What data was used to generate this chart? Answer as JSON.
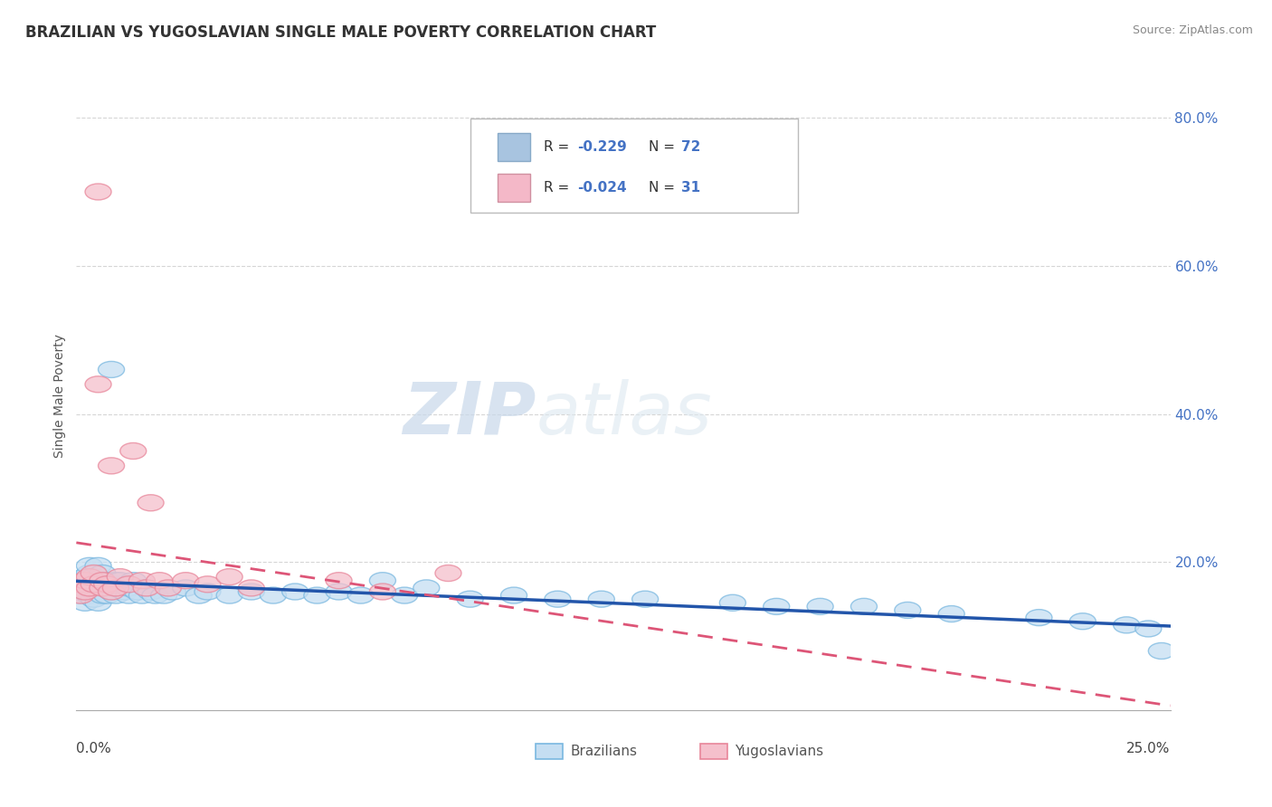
{
  "title": "BRAZILIAN VS YUGOSLAVIAN SINGLE MALE POVERTY CORRELATION CHART",
  "source": "Source: ZipAtlas.com",
  "ylabel": "Single Male Poverty",
  "xlim": [
    0.0,
    0.25
  ],
  "ylim": [
    0.0,
    0.85
  ],
  "watermark_zip": "ZIP",
  "watermark_atlas": "atlas",
  "brazilians_color": "#7ab8e0",
  "brazilians_face": "#c5def2",
  "yugoslavians_color": "#e8869a",
  "yugoslavians_face": "#f5c0cc",
  "trend_blue_color": "#2255aa",
  "trend_pink_color": "#dd5577",
  "background_color": "#ffffff",
  "grid_color": "#cccccc",
  "title_color": "#333333",
  "legend_box_color": "#a8c4e0",
  "legend_pink_color": "#f4b8c8",
  "r_value_color": "#4472c4",
  "brazil_x": [
    0.001,
    0.001,
    0.002,
    0.002,
    0.002,
    0.002,
    0.003,
    0.003,
    0.003,
    0.003,
    0.003,
    0.004,
    0.004,
    0.004,
    0.004,
    0.005,
    0.005,
    0.005,
    0.005,
    0.006,
    0.006,
    0.006,
    0.007,
    0.007,
    0.007,
    0.008,
    0.008,
    0.008,
    0.009,
    0.009,
    0.01,
    0.01,
    0.011,
    0.012,
    0.012,
    0.013,
    0.014,
    0.015,
    0.016,
    0.017,
    0.018,
    0.02,
    0.022,
    0.025,
    0.028,
    0.03,
    0.035,
    0.04,
    0.045,
    0.05,
    0.055,
    0.06,
    0.065,
    0.07,
    0.075,
    0.08,
    0.09,
    0.1,
    0.11,
    0.12,
    0.13,
    0.15,
    0.16,
    0.17,
    0.18,
    0.19,
    0.2,
    0.22,
    0.23,
    0.24,
    0.245,
    0.248
  ],
  "brazil_y": [
    0.155,
    0.165,
    0.145,
    0.16,
    0.17,
    0.18,
    0.155,
    0.165,
    0.175,
    0.185,
    0.195,
    0.15,
    0.16,
    0.17,
    0.18,
    0.145,
    0.165,
    0.175,
    0.195,
    0.155,
    0.17,
    0.185,
    0.155,
    0.165,
    0.175,
    0.16,
    0.17,
    0.46,
    0.155,
    0.175,
    0.165,
    0.175,
    0.16,
    0.155,
    0.165,
    0.175,
    0.16,
    0.155,
    0.165,
    0.16,
    0.155,
    0.155,
    0.16,
    0.165,
    0.155,
    0.16,
    0.155,
    0.16,
    0.155,
    0.16,
    0.155,
    0.16,
    0.155,
    0.175,
    0.155,
    0.165,
    0.15,
    0.155,
    0.15,
    0.15,
    0.15,
    0.145,
    0.14,
    0.14,
    0.14,
    0.135,
    0.13,
    0.125,
    0.12,
    0.115,
    0.11,
    0.08
  ],
  "yugo_x": [
    0.001,
    0.001,
    0.002,
    0.002,
    0.003,
    0.003,
    0.004,
    0.004,
    0.005,
    0.005,
    0.006,
    0.006,
    0.007,
    0.008,
    0.008,
    0.009,
    0.01,
    0.012,
    0.013,
    0.015,
    0.016,
    0.017,
    0.019,
    0.021,
    0.025,
    0.03,
    0.035,
    0.04,
    0.06,
    0.07,
    0.085
  ],
  "yugo_y": [
    0.155,
    0.17,
    0.16,
    0.175,
    0.165,
    0.18,
    0.17,
    0.185,
    0.7,
    0.44,
    0.165,
    0.175,
    0.17,
    0.16,
    0.33,
    0.165,
    0.18,
    0.17,
    0.35,
    0.175,
    0.165,
    0.28,
    0.175,
    0.165,
    0.175,
    0.17,
    0.18,
    0.165,
    0.175,
    0.16,
    0.185
  ]
}
